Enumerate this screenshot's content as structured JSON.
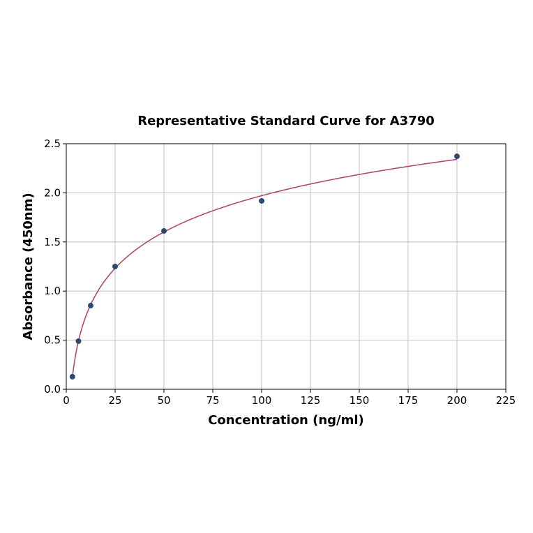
{
  "chart_data": {
    "type": "scatter",
    "title": "Representative Standard Curve for A3790",
    "xlabel": "Concentration (ng/ml)",
    "ylabel": "Absorbance (450nm)",
    "xlim": [
      0,
      225
    ],
    "ylim": [
      0,
      2.5
    ],
    "xticks": [
      0,
      25,
      50,
      75,
      100,
      125,
      150,
      175,
      200,
      225
    ],
    "yticks": [
      0.0,
      0.5,
      1.0,
      1.5,
      2.0,
      2.5
    ],
    "ytick_labels": [
      "0.0",
      "0.5",
      "1.0",
      "1.5",
      "2.0",
      "2.5"
    ],
    "grid": true,
    "x": [
      3.125,
      6.25,
      12.5,
      25,
      50,
      100,
      200
    ],
    "y": [
      0.128,
      0.49,
      0.852,
      1.25,
      1.612,
      1.918,
      2.372
    ],
    "fit": "logarithmic",
    "point_color": "#2e4a6e",
    "curve_color": "#b04a6e"
  }
}
